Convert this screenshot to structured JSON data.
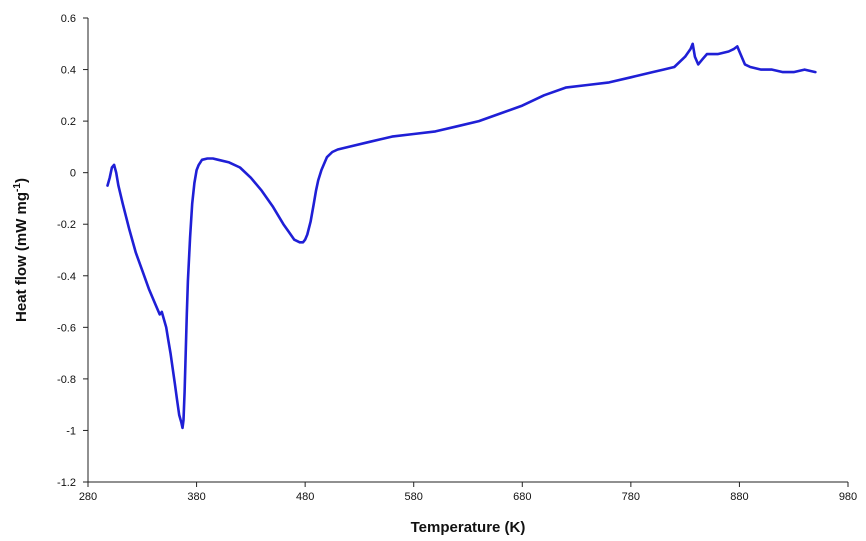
{
  "chart_data": {
    "type": "line",
    "title": "",
    "xlabel": "Temperature (K)",
    "ylabel": "Heat flow (mW mg-1)",
    "ylabel_main": "Heat flow (mW mg",
    "ylabel_sup": "-1",
    "ylabel_end": ")",
    "xlim": [
      280,
      980
    ],
    "ylim": [
      -1.2,
      0.6
    ],
    "xticks": [
      280,
      380,
      480,
      580,
      680,
      780,
      880,
      980
    ],
    "yticks": [
      -1.2,
      -1,
      -0.8,
      -0.6,
      -0.4,
      -0.2,
      0,
      0.2,
      0.4,
      0.6
    ],
    "grid": false,
    "legend": "none",
    "series": [
      {
        "color": "#1f1fd6",
        "x": [
          298,
          300,
          302,
          304,
          306,
          308,
          312,
          318,
          324,
          330,
          336,
          342,
          346,
          348,
          350,
          352,
          354,
          356,
          358,
          360,
          362,
          364,
          366,
          367,
          368,
          369,
          370,
          371,
          372,
          374,
          376,
          378,
          380,
          382,
          385,
          390,
          395,
          400,
          410,
          420,
          430,
          440,
          450,
          460,
          465,
          470,
          475,
          478,
          480,
          482,
          485,
          488,
          490,
          492,
          495,
          498,
          500,
          505,
          510,
          520,
          540,
          560,
          580,
          600,
          620,
          640,
          660,
          680,
          700,
          720,
          740,
          760,
          780,
          800,
          810,
          820,
          830,
          835,
          837,
          839,
          842,
          846,
          850,
          860,
          870,
          875,
          878,
          880,
          885,
          890,
          900,
          910,
          920,
          930,
          940,
          950
        ],
        "y": [
          -0.05,
          -0.02,
          0.02,
          0.03,
          0.0,
          -0.05,
          -0.12,
          -0.22,
          -0.31,
          -0.38,
          -0.45,
          -0.51,
          -0.55,
          -0.54,
          -0.57,
          -0.6,
          -0.65,
          -0.7,
          -0.76,
          -0.82,
          -0.88,
          -0.94,
          -0.97,
          -0.99,
          -0.96,
          -0.85,
          -0.7,
          -0.55,
          -0.42,
          -0.25,
          -0.12,
          -0.04,
          0.01,
          0.03,
          0.05,
          0.055,
          0.055,
          0.05,
          0.04,
          0.02,
          -0.02,
          -0.07,
          -0.13,
          -0.2,
          -0.23,
          -0.26,
          -0.27,
          -0.27,
          -0.26,
          -0.24,
          -0.19,
          -0.12,
          -0.07,
          -0.03,
          0.01,
          0.04,
          0.06,
          0.08,
          0.09,
          0.1,
          0.12,
          0.14,
          0.15,
          0.16,
          0.18,
          0.2,
          0.23,
          0.26,
          0.3,
          0.33,
          0.34,
          0.35,
          0.37,
          0.39,
          0.4,
          0.41,
          0.45,
          0.48,
          0.5,
          0.45,
          0.42,
          0.44,
          0.46,
          0.46,
          0.47,
          0.48,
          0.49,
          0.47,
          0.42,
          0.41,
          0.4,
          0.4,
          0.39,
          0.39,
          0.4,
          0.39
        ]
      }
    ]
  }
}
